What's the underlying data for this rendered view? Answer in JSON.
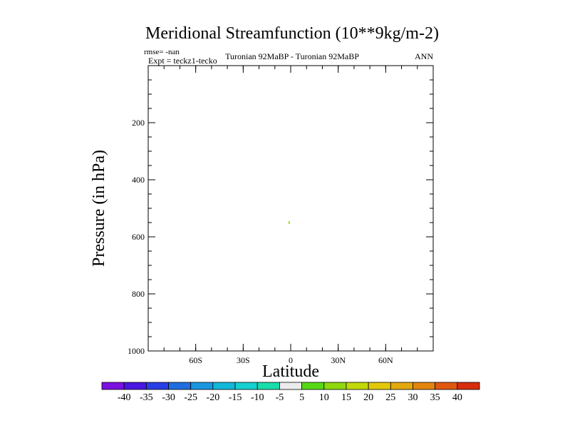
{
  "chart_data": {
    "type": "contour",
    "title": "Meridional Streamfunction (10**9kg/m-2)",
    "rmse_label": "rmse= -nan",
    "expt_label": "Expt = teckz1-tecko",
    "comparison_label": "Turonian  92MaBP - Turonian  92MaBP",
    "season_label": "ANN",
    "xlabel": "Latitude",
    "ylabel": "Pressure (in hPa)",
    "xlim": [
      -90,
      90
    ],
    "ylim": [
      1000,
      0
    ],
    "x_ticks": [
      {
        "value": -60,
        "label": "60S"
      },
      {
        "value": -30,
        "label": "30S"
      },
      {
        "value": 0,
        "label": "0"
      },
      {
        "value": 30,
        "label": "30N"
      },
      {
        "value": 60,
        "label": "60N"
      }
    ],
    "y_ticks": [
      {
        "value": 200,
        "label": "200"
      },
      {
        "value": 400,
        "label": "400"
      },
      {
        "value": 600,
        "label": "600"
      },
      {
        "value": 800,
        "label": "800"
      },
      {
        "value": 1000,
        "label": "1000"
      }
    ],
    "x_minor_step": 10,
    "y_minor_step": 50,
    "data_points": [
      {
        "lat": -1,
        "pressure": 550,
        "value": 10
      }
    ],
    "colorbar": {
      "levels": [
        -40,
        -35,
        -30,
        -25,
        -20,
        -15,
        -10,
        -5,
        5,
        10,
        15,
        20,
        25,
        30,
        35,
        40
      ],
      "labels": [
        "-40",
        "-35",
        "-30",
        "-25",
        "-20",
        "-15",
        "-10",
        "-5",
        "5",
        "10",
        "15",
        "20",
        "25",
        "30",
        "35",
        "40"
      ],
      "colors": [
        "#7a10e0",
        "#4a16e0",
        "#2a3ee6",
        "#1f6ee0",
        "#1a96e0",
        "#12b8d8",
        "#15cfd0",
        "#19dcaa",
        "#ececec",
        "#56d915",
        "#8ed80d",
        "#c2d80a",
        "#e3c80a",
        "#e3a80c",
        "#e3840e",
        "#e0580e",
        "#d82c0c"
      ]
    }
  }
}
